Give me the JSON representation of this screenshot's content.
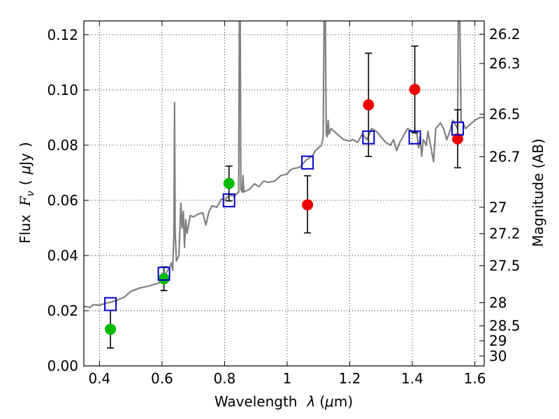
{
  "chart_data": {
    "type": "scatter",
    "xlabel_parts": [
      "Wavelength",
      "λ",
      "(",
      "μ",
      "m)"
    ],
    "ylabel_parts": [
      "Flux",
      "F",
      "ν",
      "(",
      "μ",
      "Jy",
      ")"
    ],
    "ylabel_right": "Magnitude (AB)",
    "xlim": [
      0.35,
      1.63
    ],
    "ylim": [
      0.0,
      0.125
    ],
    "x_ticks": [
      0.4,
      0.6,
      0.8,
      1.0,
      1.2,
      1.4,
      1.6
    ],
    "x_tick_labels": [
      "0.4",
      "0.6",
      "0.8",
      "1",
      "1.2",
      "1.4",
      "1.6"
    ],
    "y_ticks": [
      0.0,
      0.02,
      0.04,
      0.06,
      0.08,
      0.1,
      0.12
    ],
    "y_tick_labels": [
      "0.00",
      "0.02",
      "0.04",
      "0.06",
      "0.08",
      "0.10",
      "0.12"
    ],
    "right_ticks": [
      {
        "label": "26.2",
        "flux": 0.1202
      },
      {
        "label": "26.3",
        "flux": 0.1096
      },
      {
        "label": "26.5",
        "flux": 0.0912
      },
      {
        "label": "26.7",
        "flux": 0.0758
      },
      {
        "label": "27",
        "flux": 0.0575
      },
      {
        "label": "27.2",
        "flux": 0.0479
      },
      {
        "label": "27.5",
        "flux": 0.0363
      },
      {
        "label": "28",
        "flux": 0.0229
      },
      {
        "label": "28.5",
        "flux": 0.0145
      },
      {
        "label": "29",
        "flux": 0.0091
      },
      {
        "label": "30",
        "flux": 0.0036
      }
    ],
    "grid": true,
    "colors": {
      "spectrum": "#808080",
      "green_points": "#00bb00",
      "red_points": "#ee0000",
      "model_squares": "#0000cc",
      "errorbar": "#000000"
    },
    "series": [
      {
        "marker": "circle-green",
        "points": [
          {
            "x": 0.435,
            "y": 0.0133,
            "yerr_low": 0.0068,
            "yerr_high": 0.0068
          },
          {
            "x": 0.606,
            "y": 0.0316,
            "yerr_low": 0.0043,
            "yerr_high": 0.0043
          },
          {
            "x": 0.814,
            "y": 0.0661,
            "yerr_low": 0.0063,
            "yerr_high": 0.0063
          }
        ]
      },
      {
        "marker": "circle-red",
        "points": [
          {
            "x": 1.065,
            "y": 0.0584,
            "yerr_low": 0.0102,
            "yerr_high": 0.0105
          },
          {
            "x": 1.26,
            "y": 0.0946,
            "yerr_low": 0.0187,
            "yerr_high": 0.0187
          },
          {
            "x": 1.408,
            "y": 0.1002,
            "yerr_low": 0.0157,
            "yerr_high": 0.0157
          },
          {
            "x": 1.545,
            "y": 0.0823,
            "yerr_low": 0.0105,
            "yerr_high": 0.0105
          }
        ]
      },
      {
        "marker": "square-blue",
        "points": [
          {
            "x": 0.435,
            "y": 0.0224
          },
          {
            "x": 0.606,
            "y": 0.0334
          },
          {
            "x": 0.814,
            "y": 0.06
          },
          {
            "x": 1.065,
            "y": 0.0737
          },
          {
            "x": 1.26,
            "y": 0.0828
          },
          {
            "x": 1.408,
            "y": 0.0828
          },
          {
            "x": 1.545,
            "y": 0.086
          }
        ]
      }
    ],
    "spectrum": [
      [
        0.35,
        0.0216
      ],
      [
        0.37,
        0.0212
      ],
      [
        0.38,
        0.0222
      ],
      [
        0.4,
        0.022
      ],
      [
        0.42,
        0.0227
      ],
      [
        0.44,
        0.0232
      ],
      [
        0.46,
        0.024
      ],
      [
        0.48,
        0.025
      ],
      [
        0.5,
        0.027
      ],
      [
        0.53,
        0.0283
      ],
      [
        0.56,
        0.029
      ],
      [
        0.59,
        0.0301
      ],
      [
        0.61,
        0.033
      ],
      [
        0.625,
        0.036
      ],
      [
        0.63,
        0.0373
      ],
      [
        0.634,
        0.0346
      ],
      [
        0.638,
        0.048
      ],
      [
        0.64,
        0.0955
      ],
      [
        0.642,
        0.048
      ],
      [
        0.646,
        0.038
      ],
      [
        0.654,
        0.04
      ],
      [
        0.66,
        0.059
      ],
      [
        0.664,
        0.05
      ],
      [
        0.668,
        0.056
      ],
      [
        0.672,
        0.043
      ],
      [
        0.676,
        0.053
      ],
      [
        0.68,
        0.048
      ],
      [
        0.69,
        0.0545
      ],
      [
        0.7,
        0.054
      ],
      [
        0.715,
        0.055
      ],
      [
        0.73,
        0.0555
      ],
      [
        0.74,
        0.051
      ],
      [
        0.75,
        0.056
      ],
      [
        0.76,
        0.058
      ],
      [
        0.775,
        0.0575
      ],
      [
        0.79,
        0.0605
      ],
      [
        0.8,
        0.06
      ],
      [
        0.815,
        0.062
      ],
      [
        0.83,
        0.0615
      ],
      [
        0.84,
        0.0625
      ],
      [
        0.845,
        0.063
      ],
      [
        0.847,
        0.125
      ],
      [
        0.85,
        0.125
      ],
      [
        0.852,
        0.064
      ],
      [
        0.856,
        0.063
      ],
      [
        0.859,
        0.069
      ],
      [
        0.861,
        0.063
      ],
      [
        0.87,
        0.0635
      ],
      [
        0.88,
        0.064
      ],
      [
        0.895,
        0.066
      ],
      [
        0.91,
        0.065
      ],
      [
        0.925,
        0.067
      ],
      [
        0.94,
        0.0665
      ],
      [
        0.96,
        0.067
      ],
      [
        0.98,
        0.069
      ],
      [
        1.0,
        0.0695
      ],
      [
        1.01,
        0.071
      ],
      [
        1.02,
        0.0715
      ],
      [
        1.04,
        0.072
      ],
      [
        1.06,
        0.0745
      ],
      [
        1.08,
        0.076
      ],
      [
        1.09,
        0.078
      ],
      [
        1.1,
        0.079
      ],
      [
        1.11,
        0.08
      ],
      [
        1.115,
        0.083
      ],
      [
        1.118,
        0.125
      ],
      [
        1.122,
        0.125
      ],
      [
        1.125,
        0.084
      ],
      [
        1.128,
        0.083
      ],
      [
        1.131,
        0.089
      ],
      [
        1.134,
        0.084
      ],
      [
        1.14,
        0.086
      ],
      [
        1.16,
        0.084
      ],
      [
        1.18,
        0.082
      ],
      [
        1.2,
        0.0815
      ],
      [
        1.21,
        0.082
      ],
      [
        1.225,
        0.081
      ],
      [
        1.24,
        0.084
      ],
      [
        1.255,
        0.082
      ],
      [
        1.27,
        0.086
      ],
      [
        1.285,
        0.085
      ],
      [
        1.3,
        0.083
      ],
      [
        1.315,
        0.081
      ],
      [
        1.33,
        0.08
      ],
      [
        1.34,
        0.082
      ],
      [
        1.35,
        0.078
      ],
      [
        1.36,
        0.081
      ],
      [
        1.37,
        0.083
      ],
      [
        1.385,
        0.086
      ],
      [
        1.4,
        0.085
      ],
      [
        1.415,
        0.084
      ],
      [
        1.42,
        0.079
      ],
      [
        1.425,
        0.083
      ],
      [
        1.43,
        0.076
      ],
      [
        1.435,
        0.082
      ],
      [
        1.445,
        0.08
      ],
      [
        1.45,
        0.085
      ],
      [
        1.46,
        0.079
      ],
      [
        1.468,
        0.074
      ],
      [
        1.475,
        0.086
      ],
      [
        1.49,
        0.088
      ],
      [
        1.5,
        0.086
      ],
      [
        1.51,
        0.082
      ],
      [
        1.52,
        0.085
      ],
      [
        1.53,
        0.089
      ],
      [
        1.54,
        0.087
      ],
      [
        1.545,
        0.086
      ],
      [
        1.547,
        0.125
      ],
      [
        1.552,
        0.125
      ],
      [
        1.556,
        0.089
      ],
      [
        1.563,
        0.088
      ],
      [
        1.57,
        0.086
      ],
      [
        1.58,
        0.087
      ],
      [
        1.59,
        0.088
      ],
      [
        1.6,
        0.089
      ],
      [
        1.615,
        0.09
      ],
      [
        1.63,
        0.09
      ]
    ]
  }
}
